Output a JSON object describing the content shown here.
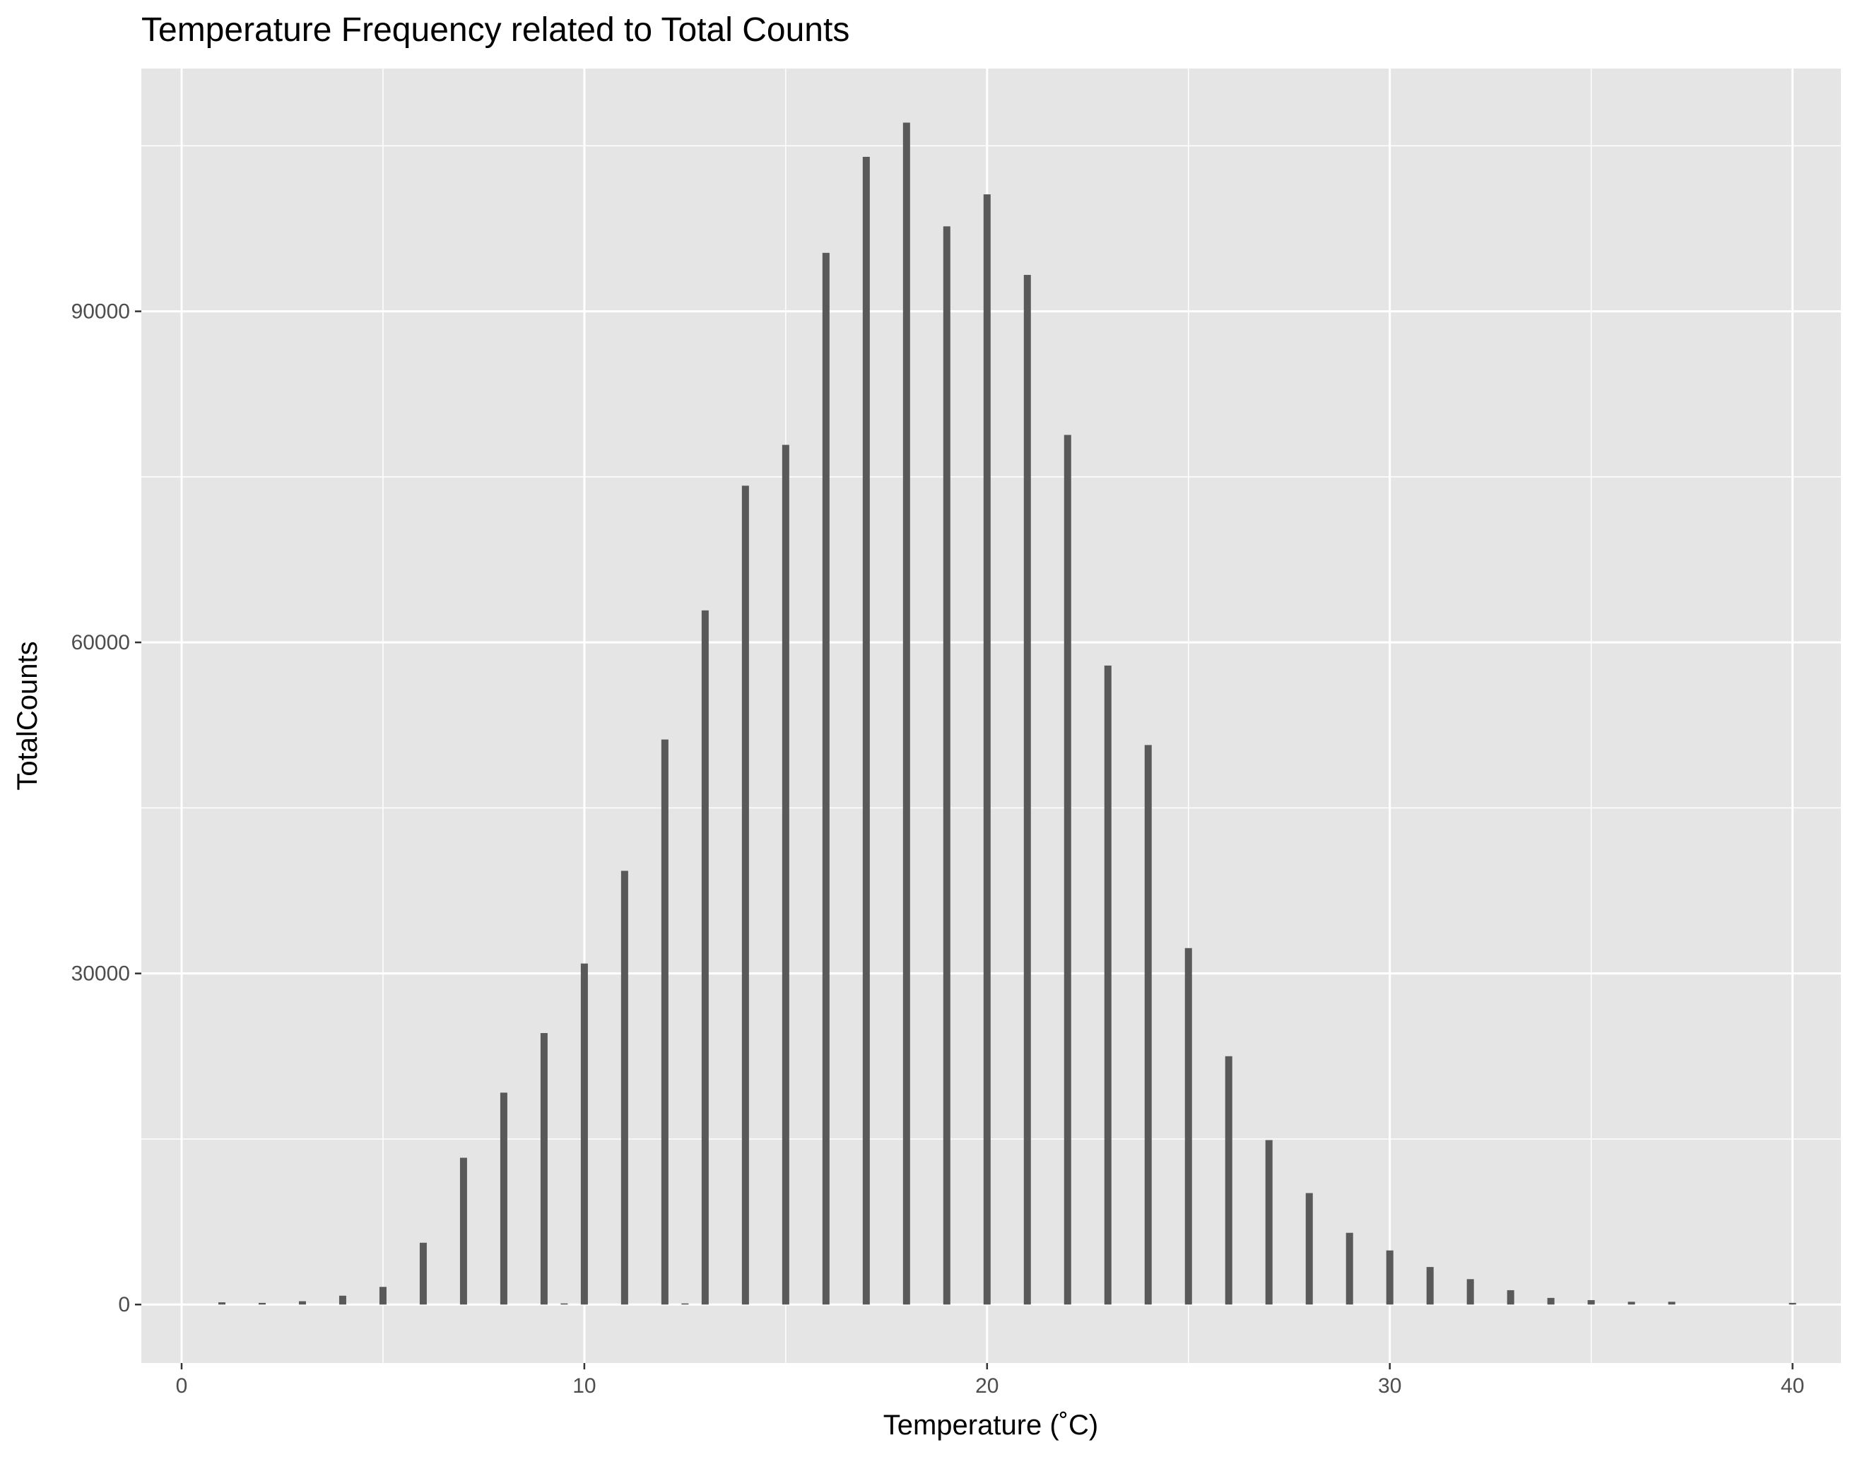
{
  "chart_data": {
    "type": "bar",
    "title": "Temperature Frequency related to Total Counts",
    "xlabel": "Temperature (˚C)",
    "ylabel": "TotalCounts",
    "xlim": [
      -1,
      41.2
    ],
    "ylim": [
      -5300,
      112000
    ],
    "x_ticks": [
      0,
      10,
      20,
      30,
      40
    ],
    "y_ticks": [
      0,
      30000,
      60000,
      90000
    ],
    "grid": true,
    "legend": "none",
    "colors": {
      "panel": "#e5e5e5",
      "grid": "#ffffff",
      "bar": "#595959",
      "text": "#000000",
      "tick_text": "#4d4d4d"
    },
    "x": [
      1,
      2,
      3,
      4,
      5,
      6,
      7,
      8,
      9,
      9.5,
      10,
      11,
      12,
      12.5,
      13,
      14,
      15,
      16,
      17,
      18,
      19,
      20,
      21,
      22,
      23,
      24,
      25,
      26,
      27,
      28,
      29,
      30,
      31,
      32,
      33,
      34,
      35,
      36,
      37,
      40
    ],
    "values": [
      200,
      150,
      300,
      800,
      1600,
      5600,
      13300,
      19200,
      24600,
      100,
      30900,
      39300,
      51200,
      100,
      62900,
      74200,
      77900,
      95300,
      104000,
      107100,
      97700,
      100600,
      93300,
      78800,
      57900,
      50700,
      32300,
      22500,
      14900,
      10100,
      6500,
      4900,
      3400,
      2300,
      1300,
      600,
      400,
      250,
      250,
      150
    ]
  }
}
